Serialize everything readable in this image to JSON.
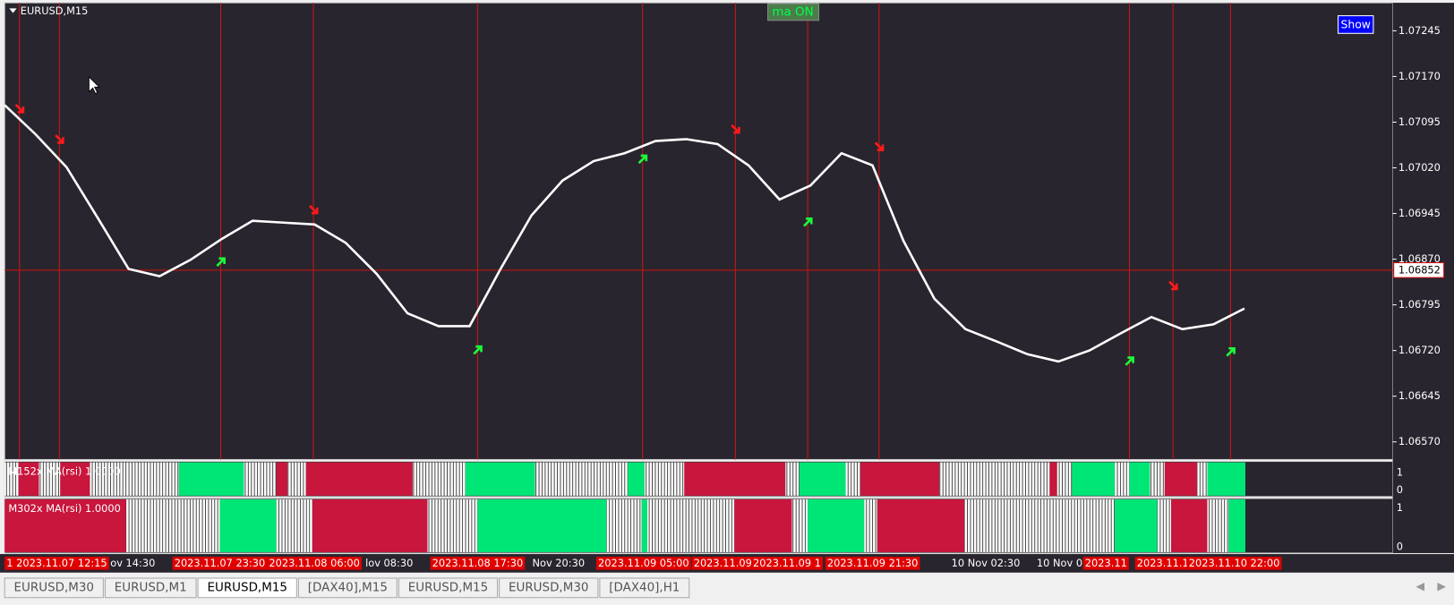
{
  "window": {
    "title": "EURUSD,M15",
    "button_ma": "ma ON",
    "button_show": "Show"
  },
  "chart_data": {
    "type": "line",
    "values": [
      1.07123,
      1.07075,
      1.07021,
      1.06938,
      1.06854,
      1.06842,
      1.06869,
      1.06903,
      1.06933,
      1.0693,
      1.06927,
      1.06897,
      1.06846,
      1.06781,
      1.0676,
      1.0676,
      1.06854,
      1.06942,
      1.06999,
      1.07031,
      1.07044,
      1.07064,
      1.07067,
      1.07059,
      1.07024,
      1.06968,
      1.06991,
      1.07044,
      1.07024,
      1.069,
      1.06805,
      1.06755,
      1.06735,
      1.06714,
      1.06702,
      1.0672,
      1.06748,
      1.06775,
      1.06755,
      1.06763,
      1.06789
    ],
    "color": "#ffffff",
    "ylim": [
      1.06541,
      1.07291
    ],
    "yticks": [
      1.07245,
      {
        "value": 1.0717,
        "label": "1.07170"
      },
      1.07095,
      {
        "value": 1.0702,
        "label": "1.07020"
      },
      1.06945,
      {
        "value": 1.0687,
        "label": "1.06870"
      },
      1.06795,
      {
        "value": 1.0672,
        "label": "1.06720"
      },
      1.06645,
      {
        "value": 1.0657,
        "label": "1.06570"
      }
    ],
    "current_price": 1.06852,
    "x_labels": [
      {
        "text": "1 2023.11.07 12:15",
        "highlight": true
      },
      {
        "text": "ov 14:30",
        "highlight": false
      },
      {
        "text": "2023.11.07 23:30",
        "highlight": true
      },
      {
        "text": "2023.11.08 06:00",
        "highlight": true
      },
      {
        "text": "lov 08:30",
        "highlight": false
      },
      {
        "text": "2023.11.08 17:30",
        "highlight": true
      },
      {
        "text": "Nov 20:30",
        "highlight": false
      },
      {
        "text": "2023.11.09 05:00",
        "highlight": true
      },
      {
        "text": "2023.11.09 1",
        "highlight": true
      },
      {
        "text": "2023.11.09 1",
        "highlight": true
      },
      {
        "text": "2023.11.09 21:30",
        "highlight": true
      },
      {
        "text": "10 Nov 02:30",
        "highlight": false
      },
      {
        "text": "10 Nov 0",
        "highlight": false
      },
      {
        "text": "2023.11",
        "highlight": true
      },
      {
        "text": "2023.11.1",
        "highlight": true
      },
      {
        "text": "2023.11.10 22:00",
        "highlight": true
      }
    ]
  },
  "indicators": [
    {
      "label": "M152x MA(rsi)  1.0000",
      "levels": [
        "1",
        "0"
      ]
    },
    {
      "label": "M302x MA(rsi)  1.0000",
      "levels": [
        "1",
        "0"
      ]
    }
  ],
  "tabs": [
    "EURUSD,M30",
    "EURUSD,M1",
    "EURUSD,M15",
    "[DAX40],M15",
    "EURUSD,M15",
    "EURUSD,M30",
    "[DAX40],H1"
  ],
  "active_tab": 2
}
